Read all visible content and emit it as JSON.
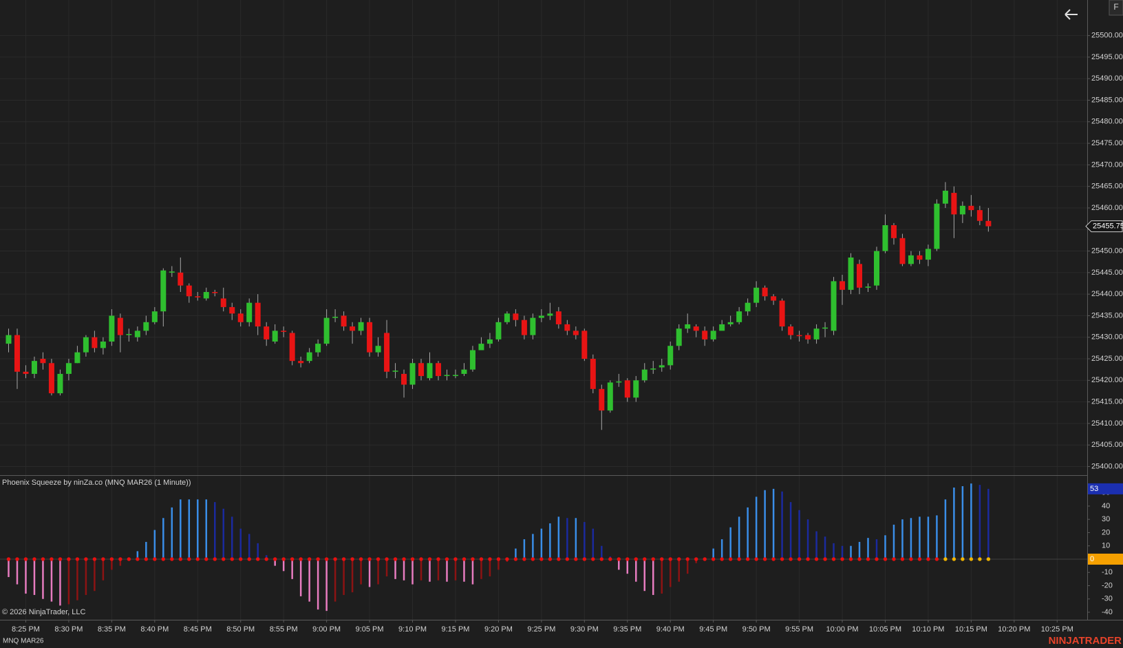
{
  "chart_data": {
    "type": "candlestick",
    "x": [
      1223,
      1224,
      1225,
      1226,
      1227,
      1228,
      1229,
      1230,
      1231,
      1232,
      1233,
      1234,
      1235,
      1236,
      1237,
      1238,
      1239,
      1240,
      1241,
      1242,
      1243,
      1244,
      1245,
      1246,
      1247,
      1248,
      1249,
      1250,
      1251,
      1252,
      1253,
      1254,
      1255,
      1256,
      1257,
      1258,
      1259,
      1260,
      1261,
      1262,
      1263,
      1264,
      1265,
      1266,
      1267,
      1268,
      1269,
      1270,
      1271,
      1272,
      1273,
      1274,
      1275,
      1276,
      1277,
      1278,
      1279,
      1280,
      1281,
      1282,
      1283,
      1284,
      1285,
      1286,
      1287,
      1288,
      1289,
      1290,
      1291,
      1292,
      1293,
      1294,
      1295,
      1296,
      1297,
      1298,
      1299,
      1300,
      1301,
      1302,
      1303,
      1304,
      1305,
      1306,
      1307,
      1308,
      1309,
      1310,
      1311,
      1312,
      1313,
      1314,
      1315,
      1316,
      1317,
      1318,
      1319,
      1320,
      1321,
      1322,
      1323,
      1324,
      1325,
      1326,
      1327,
      1328,
      1329,
      1330,
      1331,
      1332,
      1333,
      1334,
      1335,
      1336,
      1337
    ],
    "open": [
      25428.5,
      25430.5,
      25422,
      25421.5,
      25425,
      25424,
      25417,
      25421.5,
      25424,
      25426.5,
      25430,
      25427.5,
      25429,
      25434.5,
      25430.5,
      25430,
      25431.5,
      25433.5,
      25436,
      25445,
      25445,
      25442,
      25439.5,
      25439,
      25440.5,
      25439,
      25437,
      25435.5,
      25433.5,
      25438,
      25432.5,
      25429,
      25431.5,
      25431,
      25424.5,
      25424.5,
      25426.5,
      25428.5,
      25434.5,
      25435,
      25432.5,
      25431.5,
      25433.5,
      25426.5,
      25431,
      25422,
      25421.5,
      25419,
      25424,
      25420.5,
      25424,
      25421,
      25421,
      25421.5,
      25422.5,
      25427,
      25428.5,
      25429.5,
      25433.5,
      25435.5,
      25434,
      25430.5,
      25434.5,
      25435,
      25436,
      25433,
      25431.5,
      25431.5,
      25425,
      25418,
      25413,
      25419.5,
      25420,
      25416,
      25420,
      25422.5,
      25423,
      25423.5,
      25428,
      25432,
      25432.5,
      25431.5,
      25429.5,
      25431.5,
      25433,
      25433.5,
      25436,
      25438,
      25441.5,
      25439.5,
      25438.5,
      25432.5,
      25430.5,
      25430.5,
      25429.5,
      25432,
      25431.5,
      25443,
      25441,
      25447,
      25441.5,
      25442,
      25450,
      25456,
      25453,
      25447,
      25449,
      25448,
      25450.5,
      25461,
      25463.5,
      25458.5,
      25460.5,
      25459.5,
      25457
    ],
    "high": [
      25432,
      25432,
      25423.5,
      25425.5,
      25426.5,
      25425,
      25422.5,
      25425,
      25428,
      25430.5,
      25431.5,
      25430,
      25436.5,
      25435.5,
      25432,
      25432.5,
      25435,
      25437,
      25446,
      25446.5,
      25448.5,
      25442.5,
      25440.5,
      25441.5,
      25441,
      25441.5,
      25438,
      25436.5,
      25439,
      25440,
      25433.5,
      25433,
      25432.5,
      25431.5,
      25425.5,
      25427.5,
      25429.5,
      25436.5,
      25436.5,
      25436,
      25433.5,
      25434.5,
      25434.5,
      25430,
      25434,
      25424,
      25422.5,
      25425,
      25425,
      25426.5,
      25424.5,
      25422.5,
      25422.5,
      25424,
      25428,
      25430,
      25431,
      25434.5,
      25436,
      25436.5,
      25435,
      25435.5,
      25436.5,
      25438,
      25437,
      25434,
      25432.5,
      25432,
      25426,
      25419,
      25420,
      25421.5,
      25420.5,
      25421,
      25424,
      25424.5,
      25425,
      25429,
      25433,
      25435.5,
      25433,
      25432.5,
      25432.5,
      25434,
      25435,
      25437,
      25439,
      25443,
      25442,
      25440,
      25439,
      25433,
      25431.5,
      25431,
      25433,
      25433.5,
      25444,
      25444.5,
      25449.5,
      25448,
      25442.5,
      25451,
      25458.5,
      25456.5,
      25454,
      25450,
      25450,
      25451.5,
      25462,
      25466,
      25465,
      25461.5,
      25463,
      25460.5,
      25460
    ],
    "low": [
      25426.5,
      25418,
      25420.5,
      25420.5,
      25422.5,
      25416.5,
      25416.5,
      25420,
      25424,
      25425.5,
      25426.5,
      25426,
      25428,
      25426.5,
      25429,
      25429,
      25430.5,
      25433,
      25432.5,
      25444,
      25440.5,
      25438,
      25438.5,
      25438.5,
      25439.5,
      25436,
      25434,
      25432.5,
      25432.5,
      25430.5,
      25428,
      25428.5,
      25430,
      25423.5,
      25423,
      25424,
      25425.5,
      25428,
      25433.5,
      25431.5,
      25428.5,
      25430.5,
      25425.5,
      25425.5,
      25420.5,
      25420.5,
      25416,
      25418,
      25420,
      25420,
      25420,
      25420,
      25420.5,
      25421,
      25422,
      25427,
      25427.5,
      25429,
      25433,
      25432.5,
      25429.5,
      25429.5,
      25433.5,
      25434,
      25432,
      25430.5,
      25429.5,
      25424.5,
      25417,
      25408.5,
      25412.5,
      25418.5,
      25415,
      25415,
      25419.5,
      25421.5,
      25422,
      25422.5,
      25427,
      25431,
      25430,
      25428,
      25429,
      25432,
      25432.5,
      25433,
      25435,
      25437,
      25438.5,
      25437.5,
      25431.5,
      25429.5,
      25429,
      25428.5,
      25428.5,
      25430,
      25430.5,
      25437.5,
      25440,
      25440,
      25440.5,
      25441,
      25449.5,
      25451.5,
      25446.5,
      25446.5,
      25447,
      25446.5,
      25450,
      25460,
      25453,
      25456.5,
      25458,
      25456,
      25454.5
    ],
    "close": [
      25430.5,
      25422,
      25421.5,
      25424.5,
      25424,
      25417,
      25421.5,
      25424,
      25426.5,
      25430,
      25427.5,
      25429,
      25435,
      25430.5,
      25430.75,
      25431.5,
      25433.5,
      25436,
      25445.5,
      25445.25,
      25442,
      25439.5,
      25439.25,
      25440.5,
      25440.25,
      25437,
      25435.5,
      25433.5,
      25438,
      25432.5,
      25429.5,
      25431.5,
      25431.25,
      25424.5,
      25424,
      25426.5,
      25428.5,
      25434.5,
      25434.75,
      25432.5,
      25431.5,
      25433.5,
      25426.5,
      25428,
      25422,
      25422.25,
      25419,
      25424,
      25421,
      25424,
      25421,
      25421.25,
      25421.25,
      25422.5,
      25427,
      25428.5,
      25429.5,
      25433.5,
      25435.5,
      25434,
      25430.5,
      25434.5,
      25435,
      25435.5,
      25433,
      25431.5,
      25430.5,
      25425,
      25418,
      25413,
      25419.5,
      25419.75,
      25416,
      25420,
      25422.5,
      25422.75,
      25423.5,
      25428,
      25432,
      25433,
      25431.5,
      25429.5,
      25431.5,
      25433,
      25433.5,
      25436,
      25438,
      25441.5,
      25439.5,
      25438.5,
      25432.5,
      25430.5,
      25430.25,
      25429.5,
      25432,
      25432.25,
      25443,
      25441,
      25448.5,
      25441.5,
      25441.75,
      25450,
      25456,
      25453,
      25447,
      25449,
      25448,
      25450.5,
      25461,
      25464,
      25458.5,
      25460.5,
      25459.5,
      25457,
      25455.75
    ],
    "up_color": "#2fbf2f",
    "down_color": "#e81414",
    "wick_color": "#a8a8a8",
    "grid": true,
    "xlim": [
      1222,
      1348.5
    ],
    "xticks": [
      {
        "value": 1225,
        "label": "8:25 PM"
      },
      {
        "value": 1230,
        "label": "8:30 PM"
      },
      {
        "value": 1235,
        "label": "8:35 PM"
      },
      {
        "value": 1240,
        "label": "8:40 PM"
      },
      {
        "value": 1245,
        "label": "8:45 PM"
      },
      {
        "value": 1250,
        "label": "8:50 PM"
      },
      {
        "value": 1255,
        "label": "8:55 PM"
      },
      {
        "value": 1260,
        "label": "9:00 PM"
      },
      {
        "value": 1265,
        "label": "9:05 PM"
      },
      {
        "value": 1270,
        "label": "9:10 PM"
      },
      {
        "value": 1275,
        "label": "9:15 PM"
      },
      {
        "value": 1280,
        "label": "9:20 PM"
      },
      {
        "value": 1285,
        "label": "9:25 PM"
      },
      {
        "value": 1290,
        "label": "9:30 PM"
      },
      {
        "value": 1295,
        "label": "9:35 PM"
      },
      {
        "value": 1300,
        "label": "9:40 PM"
      },
      {
        "value": 1305,
        "label": "9:45 PM"
      },
      {
        "value": 1310,
        "label": "9:50 PM"
      },
      {
        "value": 1315,
        "label": "9:55 PM"
      },
      {
        "value": 1320,
        "label": "10:00 PM"
      },
      {
        "value": 1325,
        "label": "10:05 PM"
      },
      {
        "value": 1330,
        "label": "10:10 PM"
      },
      {
        "value": 1335,
        "label": "10:15 PM"
      },
      {
        "value": 1340,
        "label": "10:20 PM"
      },
      {
        "value": 1345,
        "label": "10:25 PM"
      }
    ],
    "ylim": [
      25398,
      25508.25
    ],
    "yticks": [
      {
        "value": 25400,
        "label": "25400.00"
      },
      {
        "value": 25405,
        "label": "25405.00"
      },
      {
        "value": 25410,
        "label": "25410.00"
      },
      {
        "value": 25415,
        "label": "25415.00"
      },
      {
        "value": 25420,
        "label": "25420.00"
      },
      {
        "value": 25425,
        "label": "25425.00"
      },
      {
        "value": 25430,
        "label": "25430.00"
      },
      {
        "value": 25435,
        "label": "25435.00"
      },
      {
        "value": 25440,
        "label": "25440.00"
      },
      {
        "value": 25445,
        "label": "25445.00"
      },
      {
        "value": 25450,
        "label": "25450.00"
      },
      {
        "value": 25455,
        "label": "25455.00"
      },
      {
        "value": 25460,
        "label": "25460.00"
      },
      {
        "value": 25465,
        "label": "25465.00"
      },
      {
        "value": 25470,
        "label": "25470.00"
      },
      {
        "value": 25475,
        "label": "25475.00"
      },
      {
        "value": 25480,
        "label": "25480.00"
      },
      {
        "value": 25485,
        "label": "25485.00"
      },
      {
        "value": 25490,
        "label": "25490.00"
      },
      {
        "value": 25495,
        "label": "25495.00"
      },
      {
        "value": 25500,
        "label": "25500.00"
      }
    ],
    "indicator": {
      "type": "bar",
      "title": "Phoenix Squeeze by ninZa.co (MNQ MAR26 (1 Minute))",
      "values": [
        -13.5,
        -19,
        -26,
        -27,
        -30,
        -32,
        -35,
        -34,
        -31,
        -27,
        -24,
        -16,
        -8,
        -5,
        -1,
        6,
        13,
        22,
        31,
        39,
        45,
        45,
        45,
        45,
        43,
        38,
        32,
        23,
        19,
        12,
        3,
        -5,
        -9,
        -15,
        -28,
        -32,
        -38,
        -39,
        -32,
        -27,
        -25,
        -19,
        -21,
        -19,
        -13,
        -15,
        -16,
        -19,
        -16,
        -17,
        -16,
        -17,
        -16,
        -17,
        -19,
        -15,
        -13,
        -8,
        -2,
        8,
        15,
        19,
        23,
        27,
        32,
        31,
        31,
        28,
        23,
        10,
        2,
        -8,
        -11,
        -17,
        -24,
        -27,
        -26,
        -21,
        -17,
        -11,
        -3,
        1,
        8,
        15,
        24,
        32,
        39,
        47,
        52,
        53,
        51,
        43,
        37,
        30,
        21,
        17,
        12,
        10,
        10,
        13,
        16,
        15,
        18,
        26,
        30,
        31,
        32,
        32,
        33,
        45,
        54,
        55,
        57,
        56,
        53
      ],
      "dots": [
        0,
        0,
        0,
        0,
        0,
        0,
        0,
        0,
        0,
        0,
        0,
        0,
        0,
        0,
        0,
        0,
        0,
        0,
        0,
        0,
        0,
        0,
        0,
        0,
        0,
        0,
        0,
        0,
        0,
        0,
        0,
        0,
        0,
        0,
        0,
        0,
        0,
        0,
        0,
        0,
        0,
        0,
        0,
        0,
        0,
        0,
        0,
        0,
        0,
        0,
        0,
        0,
        0,
        0,
        0,
        0,
        0,
        0,
        0,
        0,
        0,
        0,
        0,
        0,
        0,
        0,
        0,
        0,
        0,
        0,
        0,
        0,
        0,
        0,
        0,
        0,
        0,
        0,
        0,
        0,
        0,
        0,
        0,
        0,
        0,
        0,
        0,
        0,
        0,
        0,
        0,
        0,
        0,
        0,
        0,
        0,
        0,
        0,
        0,
        0,
        0,
        0,
        0,
        0,
        0,
        0,
        0,
        0,
        0,
        1,
        1,
        1,
        1,
        1,
        1
      ],
      "dot_colors": [
        "#e81010",
        "#f0b400"
      ],
      "colors": {
        "pos_up": "#3a8ee8",
        "pos_down": "#1b2a9e",
        "neg_down": "#e77cc0",
        "neg_up": "#8c1313"
      },
      "value_box_color": "#1b2fb0",
      "zero_line": 0,
      "zero_box_color": "#f5a000",
      "ylim": [
        -45.7,
        62.8
      ],
      "yticks": [
        50,
        40,
        30,
        20,
        10,
        -10,
        -20,
        -30,
        -40
      ]
    }
  },
  "footer": {
    "copyright": "© 2026 NinjaTrader, LLC",
    "instrument": "MNQ MAR26",
    "logo": "NINJATRADER"
  },
  "corner_button": "F"
}
